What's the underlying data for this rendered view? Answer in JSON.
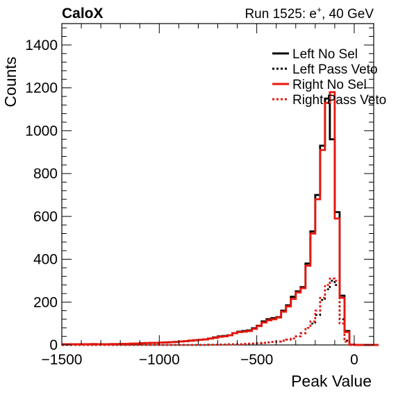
{
  "chart_data": {
    "type": "line",
    "title_left": "CaloX",
    "title_right": "Run 1525: e",
    "title_right_sup": "+",
    "title_right_rest": ", 40 GeV",
    "xlabel": "Peak Value",
    "ylabel": "Counts",
    "xlim": [
      -1500,
      100
    ],
    "ylim": [
      0,
      1500
    ],
    "x_ticks": [
      -1500,
      -1000,
      -500,
      0
    ],
    "x_tick_labels": [
      "−1500",
      "−1000",
      "−500",
      "0"
    ],
    "y_ticks": [
      0,
      200,
      400,
      600,
      800,
      1000,
      1200,
      1400
    ],
    "y_tick_labels": [
      "0",
      "200",
      "400",
      "600",
      "800",
      "1000",
      "1200",
      "1400"
    ],
    "bin_width": 25,
    "x_bin_edges_start": -1500,
    "legend_position": "top-right",
    "series": [
      {
        "name": "Left No Sel",
        "color": "#000000",
        "style": "solid",
        "values": [
          3,
          3,
          3,
          3,
          3,
          3,
          4,
          3,
          3,
          3,
          4,
          4,
          5,
          5,
          6,
          7,
          8,
          9,
          10,
          10,
          11,
          12,
          13,
          14,
          16,
          18,
          20,
          22,
          24,
          26,
          30,
          35,
          40,
          42,
          45,
          55,
          62,
          65,
          68,
          78,
          90,
          110,
          120,
          125,
          130,
          160,
          185,
          225,
          250,
          270,
          380,
          530,
          700,
          930,
          1150,
          960,
          620,
          230,
          65,
          2,
          0,
          0,
          0,
          0,
          0
        ]
      },
      {
        "name": "Left Pass Veto",
        "color": "#000000",
        "style": "dashed",
        "values": [
          0,
          0,
          0,
          0,
          0,
          0,
          0,
          0,
          0,
          0,
          0,
          0,
          0,
          0,
          0,
          0,
          0,
          0,
          0,
          0,
          0,
          0,
          0,
          0,
          0,
          0,
          0,
          0,
          0,
          0,
          1,
          1,
          2,
          2,
          3,
          3,
          4,
          5,
          6,
          7,
          8,
          10,
          12,
          14,
          16,
          20,
          25,
          30,
          40,
          55,
          80,
          100,
          140,
          210,
          260,
          300,
          280,
          120,
          20,
          0,
          0,
          0,
          0,
          0,
          0
        ]
      },
      {
        "name": "Right No Sel",
        "color": "#e8160c",
        "style": "solid",
        "values": [
          3,
          3,
          3,
          3,
          3,
          3,
          4,
          3,
          3,
          3,
          4,
          4,
          5,
          5,
          6,
          7,
          8,
          9,
          10,
          10,
          11,
          12,
          13,
          14,
          16,
          18,
          20,
          22,
          24,
          26,
          30,
          33,
          38,
          40,
          45,
          55,
          60,
          62,
          65,
          75,
          88,
          105,
          115,
          120,
          128,
          155,
          180,
          215,
          245,
          265,
          370,
          520,
          680,
          910,
          1130,
          1180,
          590,
          220,
          60,
          2,
          0,
          0,
          0,
          0,
          0
        ]
      },
      {
        "name": "Right Pass Veto",
        "color": "#e8160c",
        "style": "dashed",
        "values": [
          0,
          0,
          0,
          0,
          0,
          0,
          0,
          0,
          0,
          0,
          0,
          0,
          0,
          0,
          0,
          0,
          0,
          0,
          0,
          0,
          0,
          0,
          0,
          0,
          0,
          0,
          0,
          0,
          0,
          0,
          1,
          1,
          2,
          2,
          3,
          3,
          4,
          5,
          6,
          7,
          8,
          10,
          12,
          14,
          16,
          20,
          25,
          30,
          40,
          55,
          80,
          110,
          160,
          220,
          280,
          310,
          300,
          100,
          15,
          0,
          0,
          0,
          0,
          0,
          0
        ]
      }
    ]
  }
}
